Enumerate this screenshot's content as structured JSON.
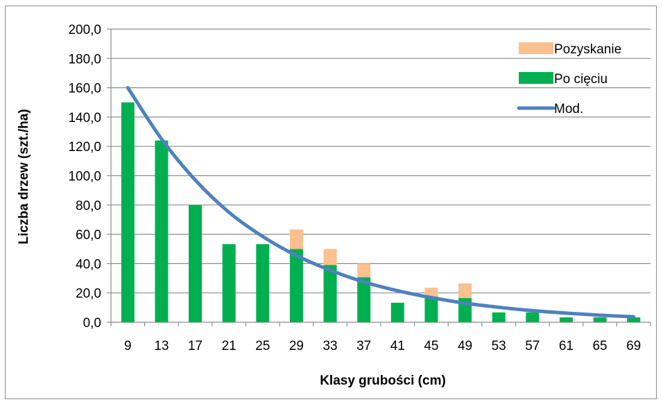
{
  "chart_data": {
    "type": "bar",
    "stacked": true,
    "xlabel": "Klasy grubości (cm)",
    "ylabel": "Liczba drzew (szt./ha)",
    "ylim": [
      0,
      200
    ],
    "ytick_step": 20,
    "ytick_labels": [
      "0,0",
      "20,0",
      "40,0",
      "60,0",
      "80,0",
      "100,0",
      "120,0",
      "140,0",
      "160,0",
      "180,0",
      "200,0"
    ],
    "categories": [
      "9",
      "13",
      "17",
      "21",
      "25",
      "29",
      "33",
      "37",
      "41",
      "45",
      "49",
      "53",
      "57",
      "61",
      "65",
      "69"
    ],
    "grid": true,
    "legend_position": "top-right",
    "series": [
      {
        "name": "Po cięciu",
        "kind": "bar",
        "color": "#00b050",
        "values": [
          150,
          124,
          80,
          53.3,
          53.3,
          50,
          39,
          30.7,
          13.3,
          17.5,
          16.5,
          6.7,
          6.7,
          3.3,
          3.3,
          3.3
        ]
      },
      {
        "name": "Pozyskanie",
        "kind": "bar",
        "color": "#fac090",
        "values": [
          0,
          0,
          0,
          0,
          0,
          13.3,
          11,
          9.3,
          0,
          6,
          10,
          0,
          0,
          0,
          0,
          0
        ]
      },
      {
        "name": "Mod.",
        "kind": "line",
        "color": "#4f81bd",
        "values": [
          160,
          125,
          97,
          75,
          58.5,
          45.5,
          35.5,
          27.5,
          21.5,
          16.8,
          13,
          10.2,
          7.9,
          6.2,
          4.8,
          3.7
        ]
      }
    ],
    "legend": [
      {
        "label": "Pozyskanie",
        "color": "#fac090",
        "marker": "box"
      },
      {
        "label": "Po cięciu",
        "color": "#00b050",
        "marker": "box"
      },
      {
        "label": "Mod.",
        "color": "#4f81bd",
        "marker": "line"
      }
    ]
  }
}
